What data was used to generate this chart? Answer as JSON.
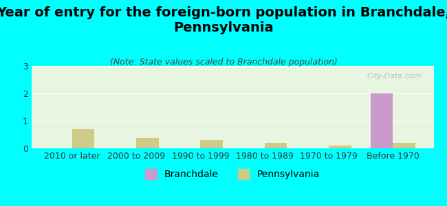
{
  "title": "Year of entry for the foreign-born population in Branchdale,\nPennsylvania",
  "subtitle": "(Note: State values scaled to Branchdale population)",
  "categories": [
    "2010 or later",
    "2000 to 2009",
    "1990 to 1999",
    "1980 to 1989",
    "1970 to 1979",
    "Before 1970"
  ],
  "branchdale_values": [
    0,
    0,
    0,
    0,
    0,
    2
  ],
  "pennsylvania_values": [
    0.7,
    0.38,
    0.3,
    0.2,
    0.1,
    0.2
  ],
  "branchdale_color": "#cc99cc",
  "pennsylvania_color": "#cccc88",
  "background_color": "#00ffff",
  "plot_bg": "#e8f5e0",
  "ylim": [
    0,
    3
  ],
  "yticks": [
    0,
    1,
    2,
    3
  ],
  "bar_width": 0.35,
  "title_fontsize": 14,
  "subtitle_fontsize": 9,
  "tick_fontsize": 9,
  "legend_fontsize": 10,
  "watermark": "City-Data.com"
}
